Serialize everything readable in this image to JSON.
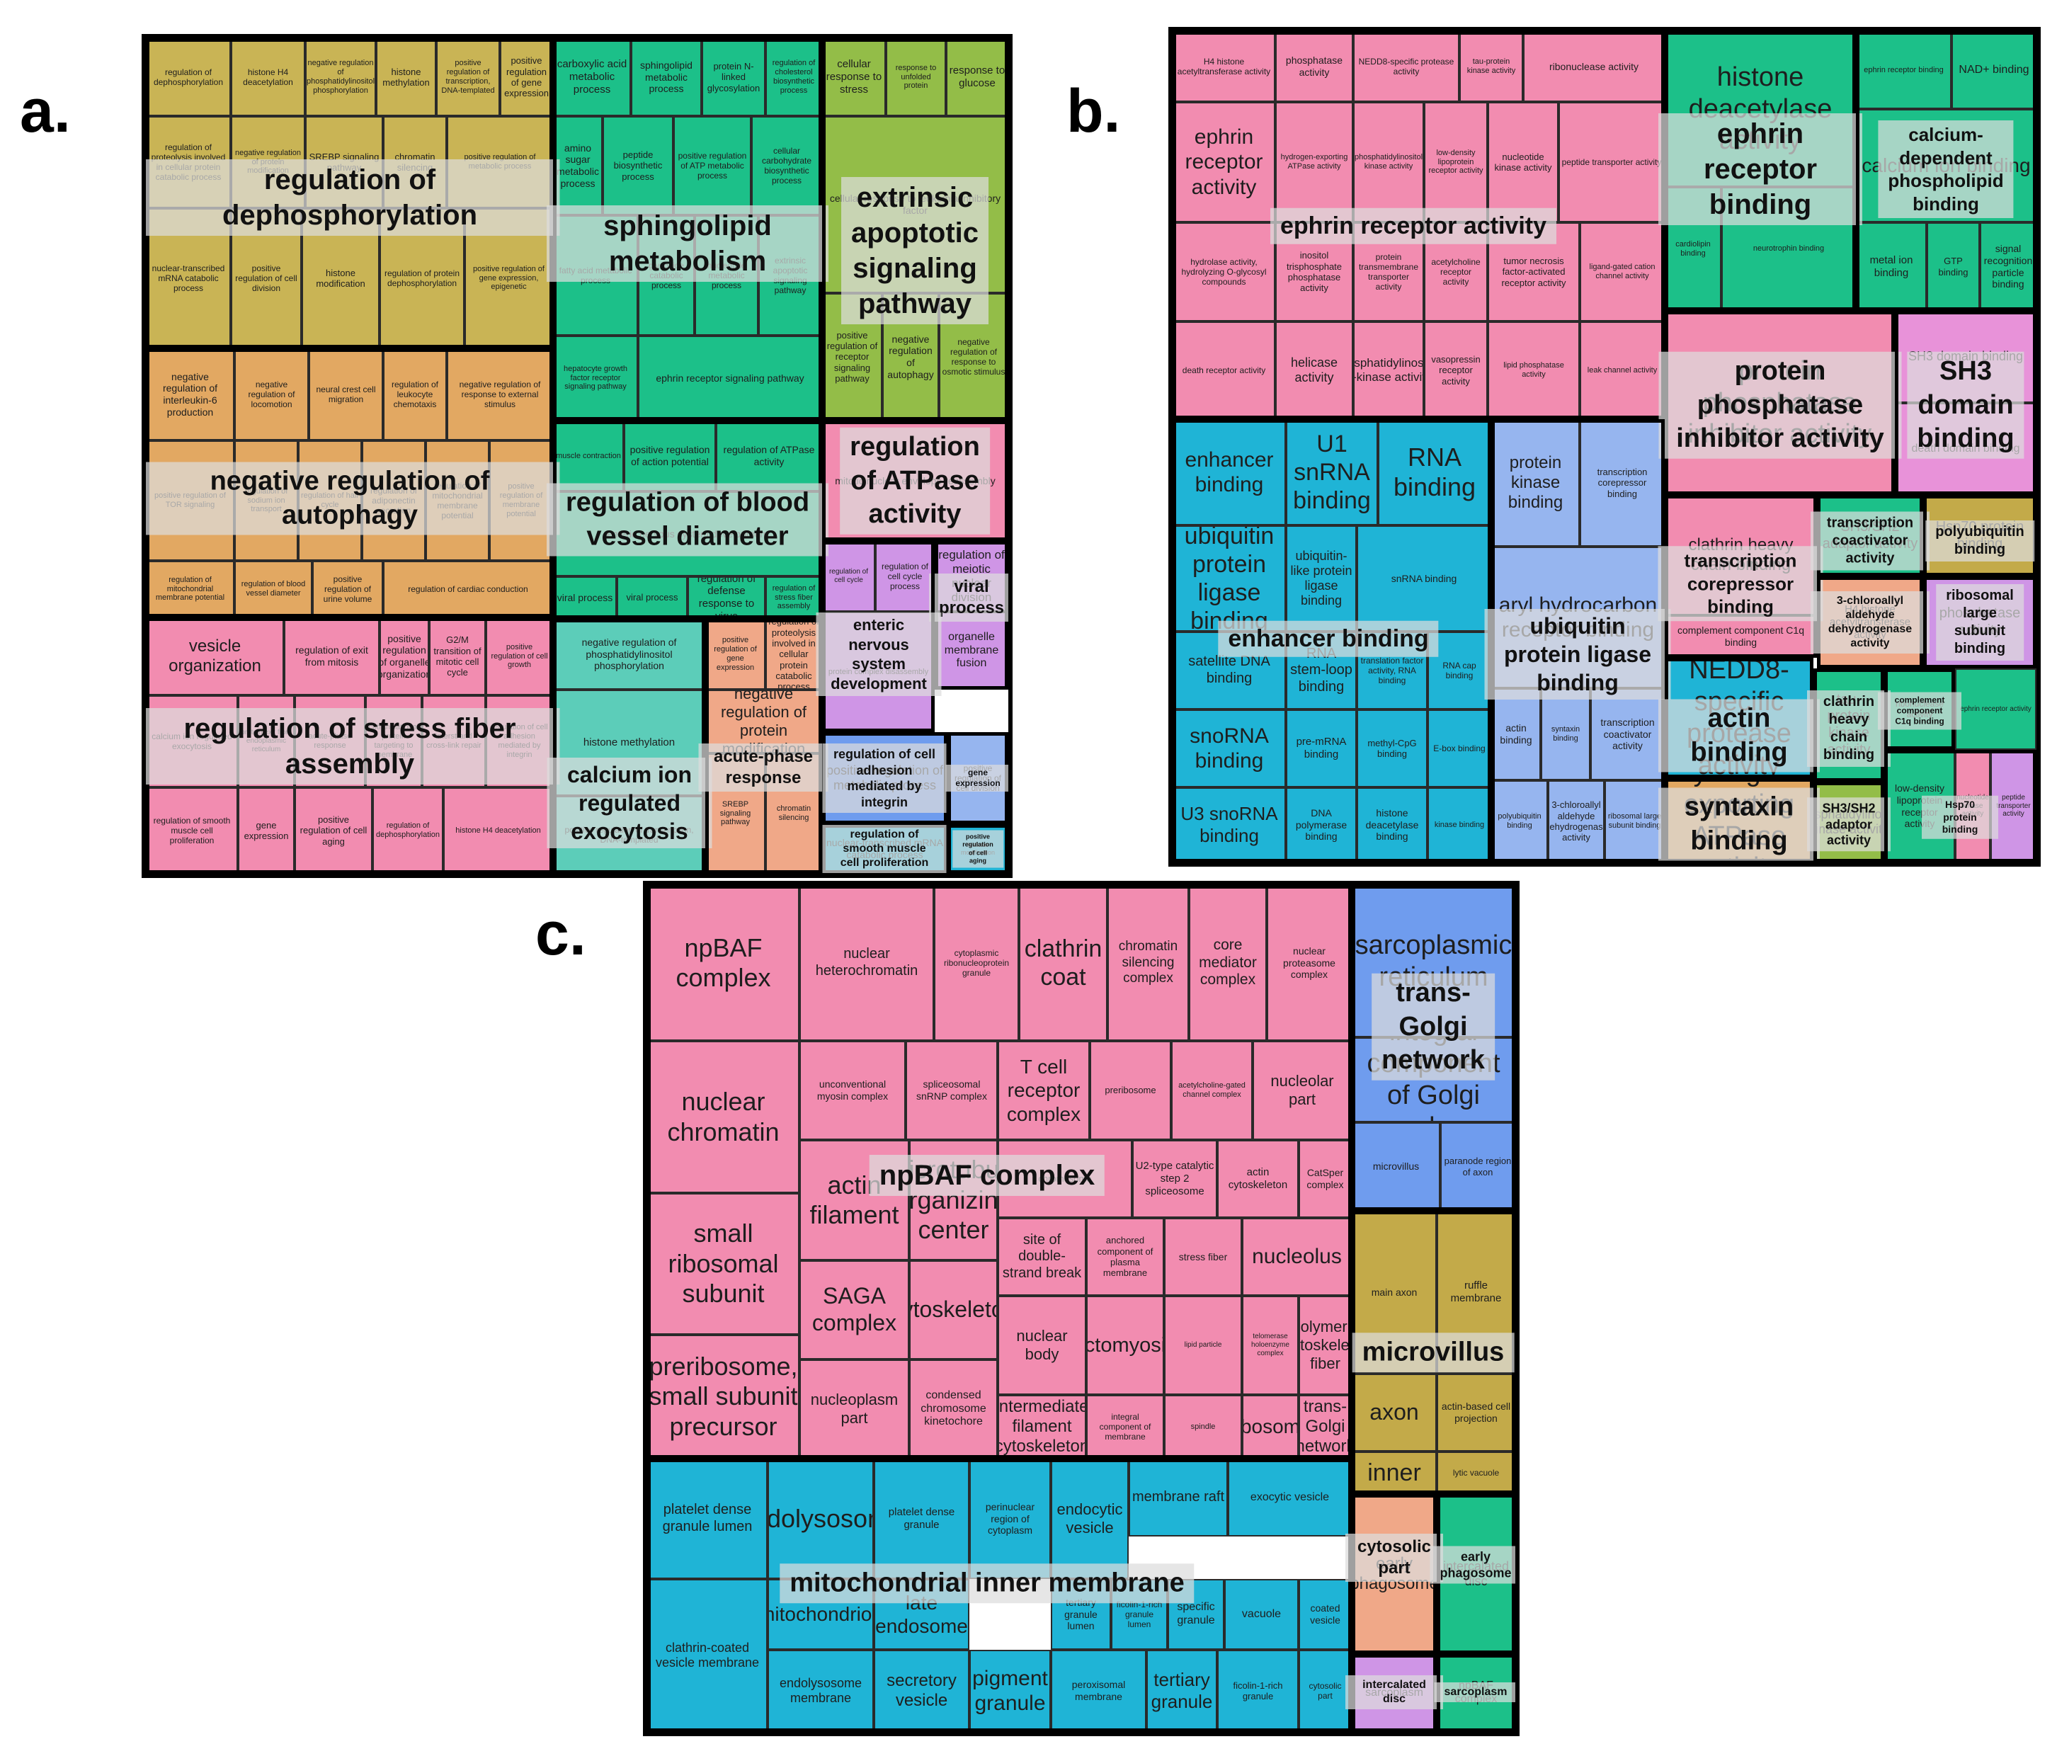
{
  "panel_labels": {
    "a": "a.",
    "b": "b.",
    "c": "c."
  },
  "colors": {
    "olive": "#c9b455",
    "orange": "#e2a862",
    "pink": "#f28cb0",
    "green": "#1cc089",
    "lime": "#93bd48",
    "teal": "#5ccdb9",
    "salmon": "#f0a888",
    "lavender": "#cf95e6",
    "blue": "#6f9cee",
    "cyan": "#1fb4d6",
    "gold": "#c3aa49",
    "paleblue": "#96b5ef",
    "magenta": "#e892d9"
  },
  "panels": [
    {
      "id": "a",
      "groups": [
        {
          "label": "regulation of dephosphorylation"
        },
        {
          "label": "sphingolipid metabolism"
        },
        {
          "label": "extrinsic apoptotic signaling pathway"
        },
        {
          "label": "negative regulation of autophagy"
        },
        {
          "label": "regulation of blood vessel diameter"
        },
        {
          "label": "regulation of ATPase activity"
        },
        {
          "label": "regulation of stress fiber assembly"
        },
        {
          "label": "calcium ion regulated exocytosis"
        },
        {
          "label": "acute-phase response"
        },
        {
          "label": "viral process"
        },
        {
          "label": "enteric nervous system development"
        },
        {
          "label": "regulation of cell adhesion mediated by integrin"
        },
        {
          "label": "regulation of smooth muscle cell proliferation"
        },
        {
          "label": "gene expression"
        },
        {
          "label": "positive regulation of cell aging"
        }
      ],
      "cells": [
        "regulation of dephosphorylation",
        "histone H4 deacetylation",
        "negative regulation of phosphatidylinositol phosphorylation",
        "histone methylation",
        "positive regulation of transcription, DNA-templated",
        "positive regulation of gene expression",
        "regulation of proteolysis involved in cellular protein catabolic process",
        "negative regulation of protein modification",
        "SREBP signaling pathway",
        "chromatin silencing",
        "positive regulation of metabolic process",
        "nuclear-transcribed mRNA catabolic process",
        "positive regulation of cell division",
        "histone modification",
        "regulation of protein dephosphorylation",
        "positive regulation of gene expression, epigenetic",
        "carboxylic acid metabolic process",
        "sphingolipid metabolic process",
        "protein N-linked glycosylation",
        "regulation of cholesterol biosynthetic process",
        "amino sugar metabolic process",
        "peptide biosynthetic process",
        "positive regulation of ATP metabolic process",
        "cellular carbohydrate biosynthetic process",
        "fatty acid metabolic process",
        "glycoside catabolic process",
        "nucleotide metabolic process",
        "extrinsic apoptotic signaling pathway",
        "hepatocyte growth factor receptor signaling pathway",
        "ephrin receptor signaling pathway",
        "cellular response to stress",
        "response to unfolded protein",
        "response to glucose",
        "cellular response to leukemia inhibitory factor",
        "positive regulation of receptor signaling pathway",
        "negative regulation of autophagy",
        "negative regulation of response to osmotic stimulus",
        "negative regulation of interleukin-6 production",
        "negative regulation of locomotion",
        "neural crest cell migration",
        "regulation of leukocyte chemotaxis",
        "negative regulation of response to external stimulus",
        "positive regulation of TOR signaling",
        "regulation of sodium ion transport",
        "regulation of hair cycle",
        "regulation of adiponectin secretion",
        "regulation of mitochondrial membrane potential",
        "positive regulation of membrane potential",
        "regulation of mitochondrial membrane potential",
        "regulation of blood vessel diameter",
        "positive regulation of urine volume",
        "regulation of cardiac conduction",
        "muscle contraction",
        "positive regulation of action potential",
        "regulation of ATPase activity",
        "enteric nervous system development",
        "viral process",
        "viral process",
        "regulation of defense response to virus",
        "regulation of stress fiber assembly",
        "mitotic nuclear envelope reassembly",
        "regulation of cell cycle",
        "regulation of cell cycle process",
        "regulation of meiotic nuclear division",
        "organelle membrane fusion",
        "protein complex disassembly",
        "vesicle organization",
        "regulation of exit from mitosis",
        "positive regulation of organelle organization",
        "G2/M transition of mitotic cell cycle",
        "positive regulation of cell growth",
        "calcium ion regulated exocytosis",
        "protein exit from endoplasmic reticulum",
        "acute-phase response",
        "cotranslational protein targeting to membrane",
        "interstrand cross-link repair",
        "regulation of cell adhesion mediated by integrin",
        "regulation of smooth muscle cell proliferation",
        "gene expression",
        "positive regulation of cell aging"
      ]
    },
    {
      "id": "b",
      "groups": [
        {
          "label": "ephrin receptor activity"
        },
        {
          "label": "ephrin receptor binding"
        },
        {
          "label": "calcium-dependent phospholipid binding"
        },
        {
          "label": "protein phosphatase inhibitor activity"
        },
        {
          "label": "SH3 domain binding"
        },
        {
          "label": "enhancer binding"
        },
        {
          "label": "ubiquitin protein ligase binding"
        },
        {
          "label": "transcription corepressor binding"
        },
        {
          "label": "transcription coactivator activity"
        },
        {
          "label": "polyubiquitin binding"
        },
        {
          "label": "3-chloroallyl aldehyde dehydrogenase activity"
        },
        {
          "label": "ribosomal large subunit binding"
        },
        {
          "label": "actin binding"
        },
        {
          "label": "clathrin heavy chain binding"
        },
        {
          "label": "complement component C1q binding"
        },
        {
          "label": "syntaxin binding"
        },
        {
          "label": "SH3/SH2 adaptor activity"
        },
        {
          "label": "Hsp70 protein binding"
        }
      ],
      "cells": [
        "H4 histone acetyltransferase activity",
        "phosphatase activity",
        "NEDD8-specific protease activity",
        "tau-protein kinase activity",
        "ribonuclease activity",
        "ephrin receptor activity",
        "hydrogen-exporting ATPase activity",
        "phosphatidylinositol kinase activity",
        "low-density lipoprotein receptor activity",
        "nucleotide kinase activity",
        "peptide transporter activity",
        "hydrolase activity, hydrolyzing O-glycosyl compounds",
        "inositol trisphosphate phosphatase activity",
        "protein transmembrane transporter activity",
        "acetylcholine receptor activity",
        "tumor necrosis factor-activated receptor activity",
        "ligand-gated cation channel activity",
        "death receptor activity",
        "helicase activity",
        "phosphatidylinositol-4-kinase activity",
        "vasopressin receptor activity",
        "lipid phosphatase activity",
        "leak channel activity",
        "histone deacetylase activity",
        "ephrin receptor binding",
        "NAD+ binding",
        "cardiolipin binding",
        "neurotrophin binding",
        "calcium ion binding",
        "metal ion binding",
        "GTP binding",
        "signal recognition particle binding",
        "protein phosphatase inhibitor activity",
        "SH3 domain binding",
        "death domain binding",
        "enhancer binding",
        "U1 snRNA binding",
        "RNA binding",
        "ubiquitin protein ligase binding",
        "ubiquitin-like protein ligase binding",
        "snRNA binding",
        "satellite DNA binding",
        "RNA stem-loop binding",
        "translation factor activity, RNA binding",
        "RNA cap binding",
        "snoRNA binding",
        "pre-mRNA binding",
        "methyl-CpG binding",
        "E-box binding",
        "U3 snoRNA binding",
        "DNA polymerase binding",
        "histone deacetylase binding",
        "kinase binding",
        "protein kinase binding",
        "transcription corepressor binding",
        "aryl hydrocarbon receptor binding",
        "actin binding",
        "syntaxin binding",
        "transcription coactivator activity",
        "polyubiquitin binding",
        "3-chloroallyl aldehyde dehydrogenase activity",
        "ribosomal large subunit binding",
        "clathrin heavy chain binding",
        "complement component C1q binding",
        "SH3/SH2 adaptor activity",
        "Hsp70 protein binding"
      ]
    },
    {
      "id": "c",
      "groups": [
        {
          "label": "npBAF complex"
        },
        {
          "label": "trans-Golgi network"
        },
        {
          "label": "microvillus"
        },
        {
          "label": "mitochondrial inner membrane"
        },
        {
          "label": "cytosolic part"
        },
        {
          "label": "early phagosome"
        },
        {
          "label": "intercalated disc"
        },
        {
          "label": "sarcoplasm"
        }
      ],
      "cells": [
        "npBAF complex",
        "nuclear heterochromatin",
        "cytoplasmic ribonucleoprotein granule",
        "clathrin coat",
        "chromatin silencing complex",
        "core mediator complex",
        "nuclear proteasome complex",
        "nuclear chromatin",
        "unconventional myosin complex",
        "spliceosomal snRNP complex",
        "T cell receptor complex",
        "preribosome",
        "acetylcholine-gated channel complex",
        "nucleolar part",
        "small ribosomal subunit",
        "actin filament",
        "microtubule organizing center",
        "chromosome",
        "U2-type catalytic step 2 spliceosome",
        "actin cytoskeleton",
        "CatSper complex",
        "SAGA complex",
        "cytoskeleton",
        "site of double-strand break",
        "anchored component of plasma membrane",
        "stress fiber",
        "nucleolus",
        "preribosome, small subunit precursor",
        "nucleoplasm part",
        "condensed chromosome kinetochore",
        "nuclear body",
        "actomyosin",
        "lipid particle",
        "telomerase holoenzyme complex",
        "polymeric cytoskeletal fiber",
        "intermediate filament cytoskeleton",
        "integral component of membrane",
        "spindle",
        "ribosome",
        "trans-Golgi network",
        "sarcoplasmic reticulum",
        "integral component of Golgi membrane",
        "microvillus",
        "paranode region of axon",
        "main axon",
        "ruffle membrane",
        "axon",
        "actin-based cell projection",
        "mitochondrial inner membrane",
        "lytic vacuole",
        "platelet dense granule lumen",
        "endolysosome",
        "platelet dense granule",
        "perinuclear region of cytoplasm",
        "endocytic vesicle",
        "membrane raft",
        "exocytic vesicle",
        "mitochondrion",
        "late endosome",
        "tertiary granule lumen",
        "ficolin-1-rich granule lumen",
        "specific granule",
        "vacuole",
        "coated vesicle",
        "clathrin-coated vesicle membrane",
        "endolysosome membrane",
        "secretory vesicle",
        "pigment granule",
        "peroxisomal membrane",
        "tertiary granule",
        "ficolin-1-rich granule",
        "cytosolic part",
        "early phagosome",
        "intercalated disc",
        "sarcoplasm"
      ]
    }
  ]
}
